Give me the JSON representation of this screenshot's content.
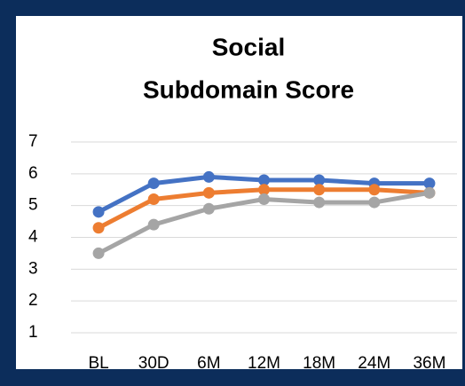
{
  "chart_data": {
    "type": "line",
    "title": [
      "Social",
      "Subdomain Score"
    ],
    "categories": [
      "BL",
      "30D",
      "6M",
      "12M",
      "18M",
      "24M",
      "36M"
    ],
    "series": [
      {
        "color": "#4472c4",
        "values": [
          4.8,
          5.7,
          5.9,
          5.8,
          5.8,
          5.7,
          5.7
        ]
      },
      {
        "color": "#ed7d31",
        "values": [
          4.3,
          5.2,
          5.4,
          5.5,
          5.5,
          5.5,
          5.4
        ]
      },
      {
        "color": "#a5a5a5",
        "values": [
          3.5,
          4.4,
          4.9,
          5.2,
          5.1,
          5.1,
          5.4
        ]
      }
    ],
    "ylim": [
      1,
      7
    ],
    "yticks": [
      1,
      2,
      3,
      4,
      5,
      6,
      7
    ],
    "grid": true
  }
}
